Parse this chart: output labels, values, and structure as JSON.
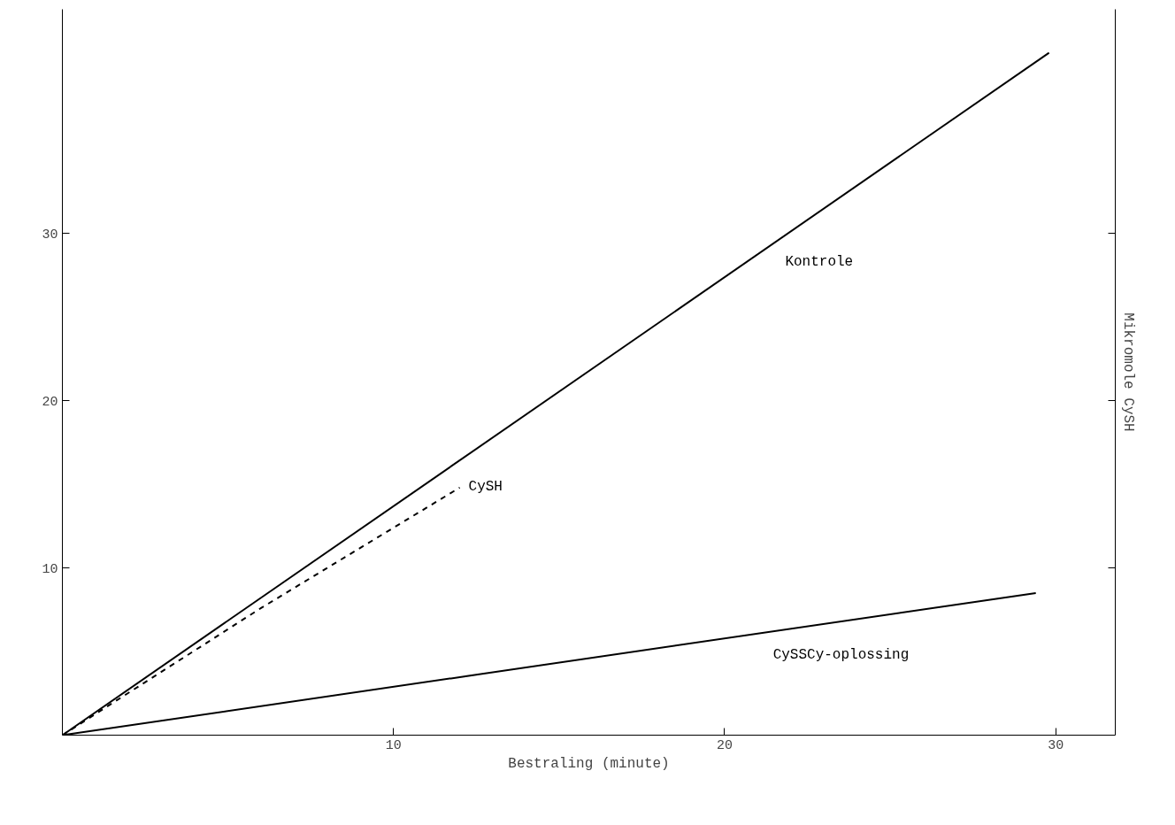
{
  "chart_data": {
    "type": "line",
    "xlabel": "Bestraling (minute)",
    "ylabel": "Mikromole CySH",
    "xlim": [
      0,
      31.8
    ],
    "ylim": [
      0,
      43.4
    ],
    "xticks": [
      10,
      20,
      30
    ],
    "yticks": [
      10,
      20,
      30
    ],
    "grid": false,
    "marker": "none",
    "series": [
      {
        "name": "Kontrole",
        "color": "#000000",
        "x": [
          0,
          29.8
        ],
        "values": [
          0,
          40.8
        ],
        "line_style": "solid"
      },
      {
        "name": "CySH",
        "color": "#000000",
        "x": [
          0,
          6,
          12
        ],
        "values": [
          0,
          7.6,
          14.8
        ],
        "line_style": "dashed"
      },
      {
        "name": "CySSCy-oplossing",
        "color": "#000000",
        "x": [
          0,
          29.4
        ],
        "values": [
          0,
          8.5
        ],
        "line_style": "solid"
      }
    ]
  }
}
